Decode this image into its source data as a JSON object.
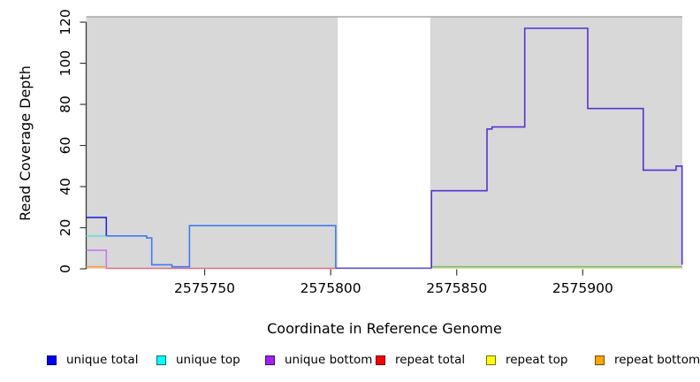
{
  "chart_data": {
    "type": "line",
    "title": "",
    "xlabel": "Coordinate in Reference Genome",
    "ylabel": "Read Coverage Depth",
    "x_ticks": [
      2575750,
      2575800,
      2575850,
      2575900
    ],
    "y_ticks": [
      0,
      20,
      40,
      60,
      80,
      100,
      120
    ],
    "xlim": [
      2575703,
      2575939.5
    ],
    "ylim": [
      0,
      122.6
    ],
    "grid": false,
    "legend_position": "bottom",
    "background_regions": [
      {
        "name": "shaded-region-left",
        "x0": 2575703,
        "x1": 2575802.8,
        "color": "#d8d8d8"
      },
      {
        "name": "shaded-region-right",
        "x0": 2575839.5,
        "x1": 2575939.5,
        "color": "#d8d8d8"
      }
    ],
    "region_top_line": {
      "value": 122.6,
      "color": "#a8a8a8"
    },
    "series": [
      {
        "name": "repeat top",
        "legend_color": "#ffff00",
        "segments": [
          {
            "color": "#e8e0a0",
            "points": [
              [
                2575840,
                0.4
              ],
              [
                2575939.4,
                0.4
              ]
            ]
          }
        ]
      },
      {
        "name": "repeat bottom",
        "legend_color": "#ffa500",
        "segments": [
          {
            "color": "#ffa033",
            "points": [
              [
                2575703,
                1
              ],
              [
                2575711,
                1
              ],
              [
                2575711,
                0.2
              ]
            ]
          }
        ]
      },
      {
        "name": "repeat total",
        "legend_color": "#ff0000",
        "segments": [
          {
            "color": "#dd6b87",
            "points": [
              [
                2575711,
                0.2
              ],
              [
                2575802,
                0.2
              ]
            ]
          }
        ]
      },
      {
        "name": "unique top",
        "legend_color": "#00ffff",
        "segments": [
          {
            "color": "#5fe3dc",
            "points": [
              [
                2575703,
                16
              ],
              [
                2575711,
                16
              ]
            ]
          },
          {
            "color": "#74bf74",
            "points": [
              [
                2575840,
                1
              ],
              [
                2575939.4,
                1
              ]
            ]
          }
        ]
      },
      {
        "name": "unique bottom",
        "legend_color": "#a020f0",
        "segments": [
          {
            "color": "#c47bef",
            "points": [
              [
                2575703,
                9
              ],
              [
                2575711,
                9
              ],
              [
                2575711,
                0.2
              ]
            ]
          }
        ]
      },
      {
        "name": "unique total",
        "legend_color": "#0000ff",
        "segments": [
          {
            "color": "#2525e2",
            "points": [
              [
                2575703,
                25
              ],
              [
                2575711,
                25
              ],
              [
                2575711,
                16
              ]
            ]
          },
          {
            "color": "#3d7cf2",
            "points": [
              [
                2575711,
                16
              ],
              [
                2575727,
                16
              ],
              [
                2575727,
                15
              ],
              [
                2575729,
                15
              ],
              [
                2575729,
                2
              ],
              [
                2575737,
                2
              ],
              [
                2575737,
                1
              ],
              [
                2575744,
                1
              ],
              [
                2575744,
                21
              ],
              [
                2575802,
                21
              ],
              [
                2575802,
                0.3
              ]
            ]
          },
          {
            "color": "#5b50e0",
            "points": [
              [
                2575802,
                0.3
              ],
              [
                2575840,
                0.3
              ]
            ]
          },
          {
            "color": "#5633d6",
            "points": [
              [
                2575840,
                0.3
              ],
              [
                2575840,
                38
              ],
              [
                2575862,
                38
              ],
              [
                2575862,
                68
              ],
              [
                2575864,
                68
              ],
              [
                2575864,
                69
              ],
              [
                2575877,
                69
              ],
              [
                2575877,
                117
              ],
              [
                2575902,
                117
              ],
              [
                2575902,
                78
              ],
              [
                2575924,
                78
              ],
              [
                2575924,
                48
              ],
              [
                2575937,
                48
              ],
              [
                2575937,
                50
              ],
              [
                2575939.4,
                50
              ],
              [
                2575939.4,
                2
              ]
            ]
          }
        ]
      }
    ]
  },
  "legend": {
    "items": [
      {
        "label": "unique total",
        "color": "#0000ff"
      },
      {
        "label": "unique top",
        "color": "#00ffff"
      },
      {
        "label": "unique bottom",
        "color": "#a020f0"
      },
      {
        "label": "repeat total",
        "color": "#ff0000"
      },
      {
        "label": "repeat top",
        "color": "#ffff00"
      },
      {
        "label": "repeat bottom",
        "color": "#ffa500"
      }
    ]
  }
}
